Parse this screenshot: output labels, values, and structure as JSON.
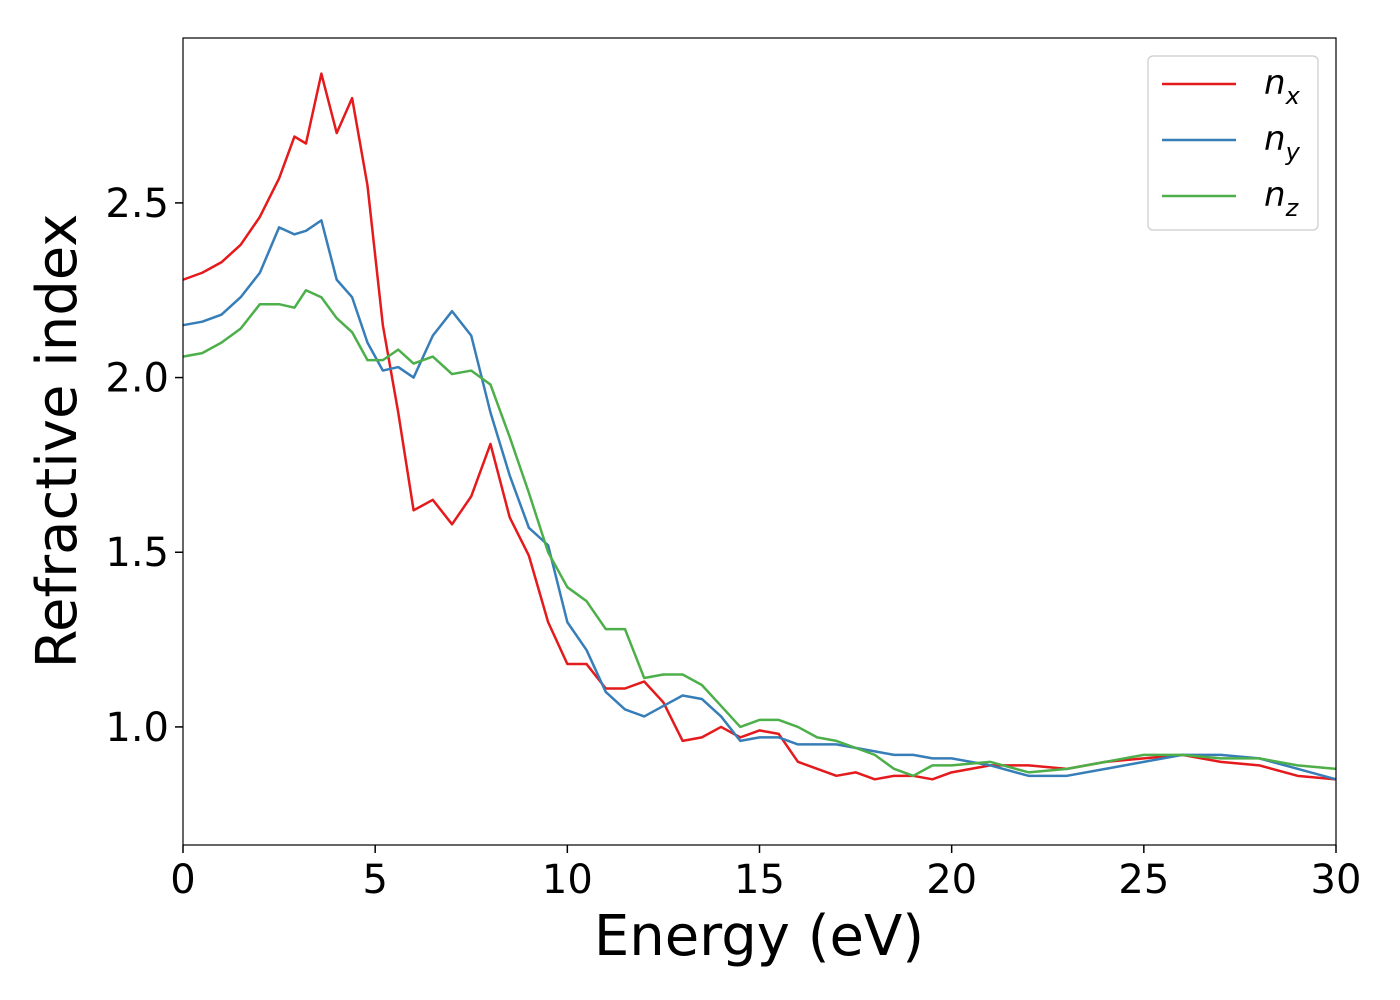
{
  "chart_data": {
    "type": "line",
    "xlabel": "Energy (eV)",
    "ylabel": "Refractive index",
    "x": [
      0,
      0.5,
      1,
      1.5,
      2,
      2.5,
      2.9,
      3.2,
      3.6,
      4.0,
      4.4,
      4.8,
      5.2,
      5.6,
      6.0,
      6.5,
      7.0,
      7.5,
      8.0,
      8.5,
      9.0,
      9.5,
      10,
      10.5,
      11,
      11.5,
      12,
      12.5,
      13,
      13.5,
      14,
      14.5,
      15,
      15.5,
      16,
      16.5,
      17,
      17.5,
      18,
      18.5,
      19,
      19.5,
      20,
      21,
      22,
      23,
      24,
      25,
      26,
      27,
      28,
      29,
      30
    ],
    "series": [
      {
        "name": "nx",
        "color": "#e41a1c",
        "values": [
          2.28,
          2.3,
          2.33,
          2.38,
          2.46,
          2.57,
          2.69,
          2.67,
          2.87,
          2.7,
          2.8,
          2.55,
          2.15,
          1.9,
          1.62,
          1.65,
          1.58,
          1.66,
          1.81,
          1.6,
          1.49,
          1.3,
          1.18,
          1.18,
          1.11,
          1.11,
          1.13,
          1.07,
          0.96,
          0.97,
          1.0,
          0.97,
          0.99,
          0.98,
          0.9,
          0.88,
          0.86,
          0.87,
          0.85,
          0.86,
          0.86,
          0.85,
          0.87,
          0.89,
          0.89,
          0.88,
          0.9,
          0.91,
          0.92,
          0.9,
          0.89,
          0.86,
          0.85
        ]
      },
      {
        "name": "ny",
        "color": "#377eb8",
        "values": [
          2.15,
          2.16,
          2.18,
          2.23,
          2.3,
          2.43,
          2.41,
          2.42,
          2.45,
          2.28,
          2.23,
          2.1,
          2.02,
          2.03,
          2.0,
          2.12,
          2.19,
          2.12,
          1.9,
          1.72,
          1.57,
          1.52,
          1.3,
          1.22,
          1.1,
          1.05,
          1.03,
          1.06,
          1.09,
          1.08,
          1.03,
          0.96,
          0.97,
          0.97,
          0.95,
          0.95,
          0.95,
          0.94,
          0.93,
          0.92,
          0.92,
          0.91,
          0.91,
          0.89,
          0.86,
          0.86,
          0.88,
          0.9,
          0.92,
          0.92,
          0.91,
          0.88,
          0.85
        ]
      },
      {
        "name": "nz",
        "color": "#4daf4a",
        "values": [
          2.06,
          2.07,
          2.1,
          2.14,
          2.21,
          2.21,
          2.2,
          2.25,
          2.23,
          2.17,
          2.13,
          2.05,
          2.05,
          2.08,
          2.04,
          2.06,
          2.01,
          2.02,
          1.98,
          1.83,
          1.67,
          1.5,
          1.4,
          1.36,
          1.28,
          1.28,
          1.14,
          1.15,
          1.15,
          1.12,
          1.06,
          1.0,
          1.02,
          1.02,
          1.0,
          0.97,
          0.96,
          0.94,
          0.92,
          0.88,
          0.86,
          0.89,
          0.89,
          0.9,
          0.87,
          0.88,
          0.9,
          0.92,
          0.92,
          0.91,
          0.91,
          0.89,
          0.88
        ]
      }
    ],
    "xlim": [
      0,
      30
    ],
    "xticks": [
      0,
      5,
      10,
      15,
      20,
      25,
      30
    ],
    "ylim": [
      0.662,
      2.972
    ],
    "yticks": [
      {
        "value": 1.0,
        "label": "1.0"
      },
      1.5,
      {
        "value": 2.0,
        "label": "2.0"
      },
      2.5
    ],
    "legend": "upper right",
    "grid": false
  }
}
